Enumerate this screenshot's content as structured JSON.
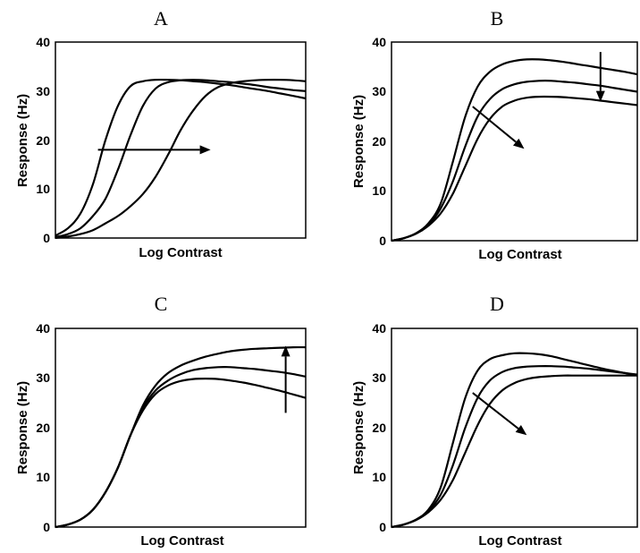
{
  "chart_data": [
    {
      "type": "line",
      "title": "A",
      "xlabel": "Log Contrast",
      "ylabel": "Response (Hz)",
      "ylim": [
        0,
        40
      ],
      "xlim": [
        0,
        1
      ],
      "yticks": [
        "0",
        "10",
        "20",
        "30",
        "40"
      ],
      "grid": false,
      "series": [
        {
          "x": [
            0,
            0.05,
            0.1,
            0.15,
            0.2,
            0.25,
            0.3,
            0.35,
            0.4,
            0.45,
            0.5,
            0.55,
            0.6,
            0.65,
            0.7,
            0.75,
            0.8,
            0.85,
            0.9,
            0.95,
            1.0
          ],
          "y": [
            0.5,
            2,
            5,
            11,
            20,
            27,
            31,
            32,
            32.3,
            32.3,
            32.2,
            32,
            31.8,
            31.5,
            31.2,
            30.8,
            30.4,
            30,
            29.5,
            29,
            28.5
          ]
        },
        {
          "x": [
            0,
            0.05,
            0.1,
            0.15,
            0.2,
            0.25,
            0.3,
            0.35,
            0.4,
            0.45,
            0.5,
            0.55,
            0.6,
            0.65,
            0.7,
            0.75,
            0.8,
            0.85,
            0.9,
            0.95,
            1.0
          ],
          "y": [
            0.2,
            0.8,
            2,
            4.5,
            8,
            14,
            21,
            27,
            30.5,
            31.8,
            32.2,
            32.3,
            32.2,
            32,
            31.8,
            31.5,
            31.2,
            30.8,
            30.5,
            30.2,
            30
          ]
        },
        {
          "x": [
            0,
            0.05,
            0.1,
            0.15,
            0.2,
            0.25,
            0.3,
            0.35,
            0.4,
            0.45,
            0.5,
            0.55,
            0.6,
            0.65,
            0.7,
            0.75,
            0.8,
            0.85,
            0.9,
            0.95,
            1.0
          ],
          "y": [
            0,
            0.3,
            0.8,
            1.6,
            3,
            4.5,
            6.5,
            9,
            12.5,
            17,
            22,
            26,
            29,
            30.8,
            31.6,
            32,
            32.2,
            32.3,
            32.3,
            32.2,
            32
          ]
        }
      ],
      "annotations": [
        {
          "type": "arrow",
          "from": [
            0.17,
            18
          ],
          "to": [
            0.62,
            18
          ]
        }
      ]
    },
    {
      "type": "line",
      "title": "B",
      "xlabel": "Log Contrast",
      "ylabel": "Response (Hz)",
      "ylim": [
        0,
        40
      ],
      "xlim": [
        0,
        1
      ],
      "yticks": [
        "0",
        "10",
        "20",
        "30",
        "40"
      ],
      "grid": false,
      "series": [
        {
          "x": [
            0,
            0.05,
            0.1,
            0.15,
            0.2,
            0.25,
            0.3,
            0.35,
            0.4,
            0.45,
            0.5,
            0.55,
            0.6,
            0.65,
            0.7,
            0.75,
            0.8,
            0.85,
            0.9,
            0.95,
            1.0
          ],
          "y": [
            0,
            0.5,
            1.5,
            3.5,
            7.5,
            16,
            25,
            31,
            34,
            35.5,
            36.2,
            36.5,
            36.5,
            36.3,
            36,
            35.6,
            35.2,
            34.8,
            34.4,
            34,
            33.5
          ]
        },
        {
          "x": [
            0,
            0.05,
            0.1,
            0.15,
            0.2,
            0.25,
            0.3,
            0.35,
            0.4,
            0.45,
            0.5,
            0.55,
            0.6,
            0.65,
            0.7,
            0.75,
            0.8,
            0.85,
            0.9,
            0.95,
            1.0
          ],
          "y": [
            0,
            0.5,
            1.5,
            3.2,
            6.5,
            12,
            19,
            25,
            28.5,
            30.5,
            31.5,
            32,
            32.2,
            32.2,
            32,
            31.8,
            31.5,
            31.2,
            30.8,
            30.4,
            30
          ]
        },
        {
          "x": [
            0,
            0.05,
            0.1,
            0.15,
            0.2,
            0.25,
            0.3,
            0.35,
            0.4,
            0.45,
            0.5,
            0.55,
            0.6,
            0.65,
            0.7,
            0.75,
            0.8,
            0.85,
            0.9,
            0.95,
            1.0
          ],
          "y": [
            0,
            0.5,
            1.4,
            3,
            5.5,
            9.5,
            15,
            20.5,
            24.5,
            27,
            28.2,
            28.8,
            29,
            29,
            28.9,
            28.7,
            28.5,
            28.2,
            27.9,
            27.6,
            27.3
          ]
        }
      ],
      "annotations": [
        {
          "type": "arrow",
          "from": [
            0.33,
            27
          ],
          "to": [
            0.54,
            18.5
          ]
        },
        {
          "type": "arrow",
          "from": [
            0.85,
            38
          ],
          "to": [
            0.85,
            28
          ]
        }
      ]
    },
    {
      "type": "line",
      "title": "C",
      "xlabel": "Log Contrast",
      "ylabel": "Response (Hz)",
      "ylim": [
        0,
        40
      ],
      "xlim": [
        0,
        1
      ],
      "yticks": [
        "0",
        "10",
        "20",
        "30",
        "40"
      ],
      "grid": false,
      "series": [
        {
          "x": [
            0,
            0.05,
            0.1,
            0.15,
            0.2,
            0.25,
            0.3,
            0.35,
            0.4,
            0.45,
            0.5,
            0.55,
            0.6,
            0.65,
            0.7,
            0.75,
            0.8,
            0.85,
            0.9,
            0.95,
            1.0
          ],
          "y": [
            0,
            0.5,
            1.5,
            3.5,
            7,
            12,
            18.5,
            24.5,
            28.5,
            31,
            32.5,
            33.5,
            34.3,
            34.9,
            35.4,
            35.7,
            35.9,
            36,
            36.1,
            36.2,
            36.2
          ]
        },
        {
          "x": [
            0,
            0.05,
            0.1,
            0.15,
            0.2,
            0.25,
            0.3,
            0.35,
            0.4,
            0.45,
            0.5,
            0.55,
            0.6,
            0.65,
            0.7,
            0.75,
            0.8,
            0.85,
            0.9,
            0.95,
            1.0
          ],
          "y": [
            0,
            0.5,
            1.5,
            3.5,
            7,
            12,
            18.5,
            24,
            27.5,
            29.5,
            30.8,
            31.6,
            32,
            32.2,
            32.2,
            32,
            31.8,
            31.5,
            31.2,
            30.8,
            30.3
          ]
        },
        {
          "x": [
            0,
            0.05,
            0.1,
            0.15,
            0.2,
            0.25,
            0.3,
            0.35,
            0.4,
            0.45,
            0.5,
            0.55,
            0.6,
            0.65,
            0.7,
            0.75,
            0.8,
            0.85,
            0.9,
            0.95,
            1.0
          ],
          "y": [
            0,
            0.5,
            1.5,
            3.5,
            7,
            12,
            18.5,
            23.5,
            26.8,
            28.5,
            29.4,
            29.8,
            29.9,
            29.8,
            29.5,
            29.1,
            28.6,
            28,
            27.4,
            26.7,
            26
          ]
        }
      ],
      "annotations": [
        {
          "type": "arrow",
          "from": [
            0.92,
            23
          ],
          "to": [
            0.92,
            36.5
          ]
        }
      ]
    },
    {
      "type": "line",
      "title": "D",
      "xlabel": "Log Contrast",
      "ylabel": "Response (Hz)",
      "ylim": [
        0,
        40
      ],
      "xlim": [
        0,
        1
      ],
      "yticks": [
        "0",
        "10",
        "20",
        "30",
        "40"
      ],
      "grid": false,
      "series": [
        {
          "x": [
            0,
            0.05,
            0.1,
            0.15,
            0.2,
            0.25,
            0.3,
            0.35,
            0.4,
            0.45,
            0.5,
            0.55,
            0.6,
            0.65,
            0.7,
            0.75,
            0.8,
            0.85,
            0.9,
            0.95,
            1.0
          ],
          "y": [
            0,
            0.5,
            1.5,
            3.5,
            8,
            17,
            26,
            31.5,
            33.8,
            34.6,
            35,
            35,
            34.8,
            34.4,
            33.8,
            33.2,
            32.6,
            32,
            31.5,
            31,
            30.5
          ]
        },
        {
          "x": [
            0,
            0.05,
            0.1,
            0.15,
            0.2,
            0.25,
            0.3,
            0.35,
            0.4,
            0.45,
            0.5,
            0.55,
            0.6,
            0.65,
            0.7,
            0.75,
            0.8,
            0.85,
            0.9,
            0.95,
            1.0
          ],
          "y": [
            0,
            0.5,
            1.5,
            3.2,
            6.5,
            12.5,
            20,
            26,
            29.5,
            31.2,
            32,
            32.3,
            32.4,
            32.4,
            32.3,
            32.1,
            31.9,
            31.6,
            31.3,
            31,
            30.7
          ]
        },
        {
          "x": [
            0,
            0.05,
            0.1,
            0.15,
            0.2,
            0.25,
            0.3,
            0.35,
            0.4,
            0.45,
            0.5,
            0.55,
            0.6,
            0.65,
            0.7,
            0.75,
            0.8,
            0.85,
            0.9,
            0.95,
            1.0
          ],
          "y": [
            0,
            0.5,
            1.4,
            3,
            5.5,
            9.5,
            15,
            20.5,
            24.8,
            27.5,
            29,
            29.8,
            30.2,
            30.4,
            30.5,
            30.5,
            30.5,
            30.5,
            30.5,
            30.5,
            30.5
          ]
        }
      ],
      "annotations": [
        {
          "type": "arrow",
          "from": [
            0.33,
            27
          ],
          "to": [
            0.55,
            18.5
          ]
        }
      ]
    }
  ]
}
